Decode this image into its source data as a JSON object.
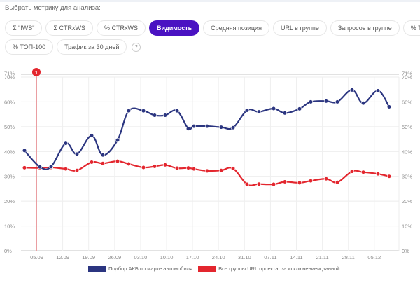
{
  "header": {
    "prompt": "Выбрать метрику для анализа:"
  },
  "metrics": {
    "row1": [
      {
        "label": "Σ \"!WS\"",
        "active": false
      },
      {
        "label": "Σ CTRxWS",
        "active": false
      },
      {
        "label": "% CTRxWS",
        "active": false
      },
      {
        "label": "Видимость",
        "active": true
      },
      {
        "label": "Средняя позиция",
        "active": false
      },
      {
        "label": "URL в группе",
        "active": false
      },
      {
        "label": "Запросов в группе",
        "active": false
      },
      {
        "label": "% ТОП-10",
        "active": false
      }
    ],
    "row2": [
      {
        "label": "% ТОП-100",
        "active": false
      },
      {
        "label": "Трафик за 30 дней",
        "active": false
      }
    ],
    "help_label": "?"
  },
  "colors": {
    "accent": "#4a12c2",
    "series1": "#2b3580",
    "series2": "#e3262e",
    "marker": "#e3262e",
    "grid": "#e6e6e6"
  },
  "marker": {
    "label": "1",
    "x_date": "05.09"
  },
  "chart_data": {
    "type": "line",
    "title": "",
    "xlabel": "",
    "ylabel": "",
    "ylim": [
      0,
      71
    ],
    "y_ticks": [
      "0%",
      "10%",
      "20%",
      "30%",
      "40%",
      "50%",
      "60%",
      "70%",
      "71%"
    ],
    "x_tick_labels": [
      "05.09",
      "12.09",
      "19.09",
      "26.09",
      "03.10",
      "10.10",
      "17.10",
      "24.10",
      "31.10",
      "07.11",
      "14.11",
      "21.11",
      "28.11",
      "05.12"
    ],
    "grid": true,
    "legend_position": "bottom",
    "x": [
      "02.09",
      "06.09",
      "09.09",
      "13.09",
      "16.09",
      "20.09",
      "23.09",
      "27.09",
      "30.09",
      "04.10",
      "07.10",
      "11.10",
      "14.10",
      "17.10",
      "18.10",
      "21.10",
      "25.10",
      "28.10",
      "01.11",
      "04.11",
      "08.11",
      "11.11",
      "15.11",
      "18.11",
      "22.11",
      "25.11",
      "29.11",
      "02.12",
      "06.12",
      "09.12"
    ],
    "series": [
      {
        "name": "Подбор АКБ по марке автомобиля",
        "color": "#2b3580",
        "values": [
          40.4,
          33.8,
          33.9,
          43.3,
          39.0,
          46.4,
          38.6,
          44.6,
          56.4,
          56.4,
          54.6,
          54.6,
          56.4,
          49.2,
          50.2,
          50.2,
          49.8,
          49.6,
          56.6,
          56.0,
          57.3,
          55.5,
          57.2,
          60.0,
          60.3,
          60.0,
          64.8,
          59.5,
          64.5,
          58.0
        ]
      },
      {
        "name": "Все группы URL проекта, за исключением данной",
        "color": "#e3262e",
        "values": [
          33.5,
          33.4,
          33.6,
          33.0,
          32.4,
          35.7,
          35.2,
          36.1,
          35.0,
          33.6,
          34.0,
          34.6,
          33.3,
          33.4,
          33.0,
          32.2,
          32.4,
          33.2,
          26.8,
          26.9,
          26.8,
          27.8,
          27.4,
          28.2,
          29.0,
          27.6,
          32.0,
          31.7,
          31.0,
          30.0
        ]
      }
    ]
  },
  "legend": [
    {
      "label": "Подбор АКБ по марке автомобиля",
      "color": "#2b3580"
    },
    {
      "label": "Все группы URL проекта, за исключением данной",
      "color": "#e3262e"
    }
  ]
}
